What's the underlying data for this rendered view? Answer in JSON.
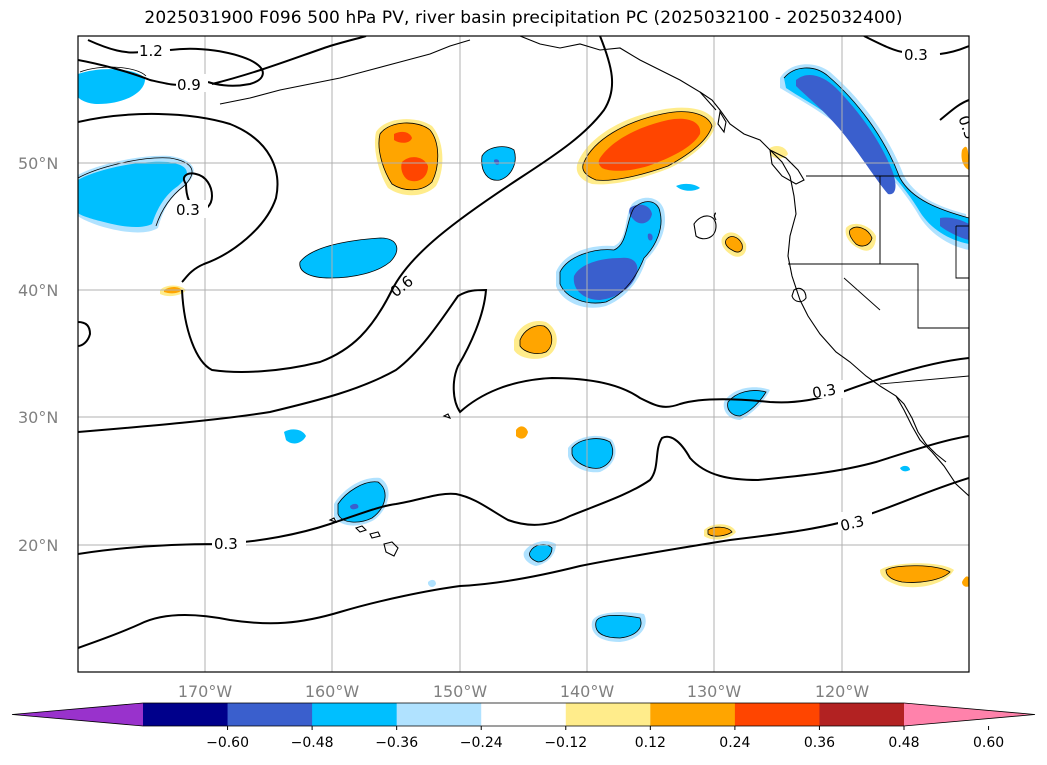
{
  "title": "2025031900 F096 500 hPa PV, river basin precipitation PC (2025032100 - 2025032400)",
  "map": {
    "projection": "PlateCarree",
    "extent": {
      "lon_min": -180,
      "lon_max": -110,
      "lat_min": 10,
      "lat_max": 60
    },
    "lat_ticks": [
      {
        "value": 20,
        "label": "20°N"
      },
      {
        "value": 30,
        "label": "30°N"
      },
      {
        "value": 40,
        "label": "40°N"
      },
      {
        "value": 50,
        "label": "50°N"
      }
    ],
    "lon_ticks": [
      {
        "value": -170,
        "label": "170°W"
      },
      {
        "value": -160,
        "label": "160°W"
      },
      {
        "value": -150,
        "label": "150°W"
      },
      {
        "value": -140,
        "label": "140°W"
      },
      {
        "value": -130,
        "label": "130°W"
      },
      {
        "value": -120,
        "label": "120°W"
      }
    ],
    "gridlines": true,
    "pv_contour_labels": [
      "1.2",
      "0.9",
      "0.3",
      "0.6",
      "0.3",
      "0.3",
      "0.3",
      "0.3",
      "0.3"
    ]
  },
  "colorbar": {
    "ticks": [
      "−0.60",
      "−0.48",
      "−0.36",
      "−0.24",
      "−0.12",
      "0.12",
      "0.24",
      "0.36",
      "0.48",
      "0.60"
    ],
    "colors": [
      "#9932cc",
      "#00008b",
      "#3a5fcd",
      "#00bfff",
      "#b0e2ff",
      "#ffffff",
      "#ffec8b",
      "#ffa500",
      "#ff4500",
      "#b22222",
      "#ff82ab"
    ]
  }
}
